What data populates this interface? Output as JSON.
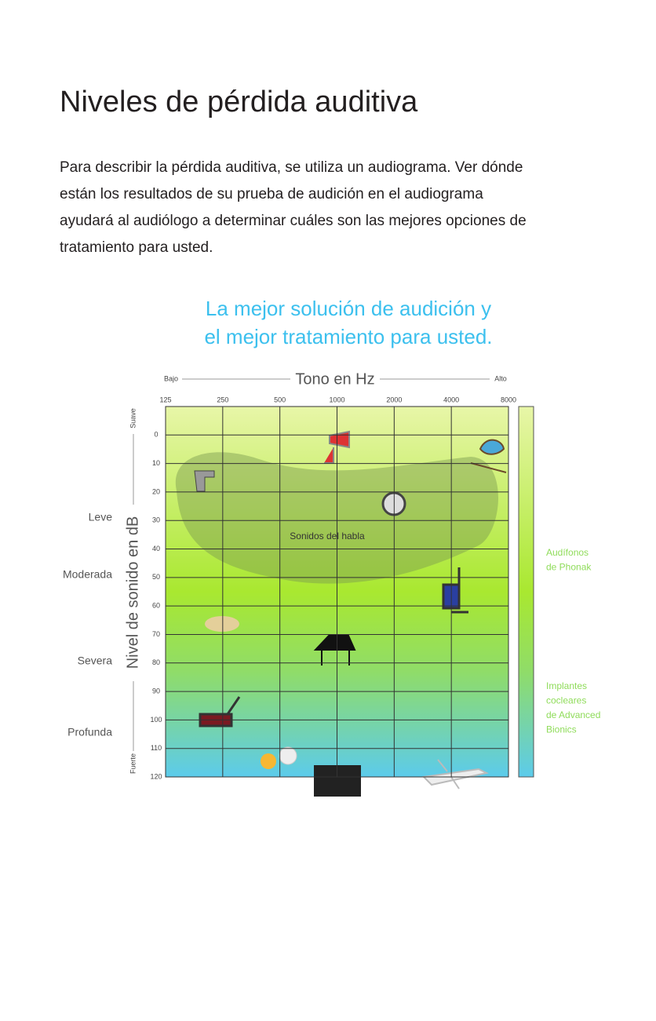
{
  "title": "Niveles de pérdida auditiva",
  "intro": [
    "Para describir la pérdida auditiva, se utiliza un audiograma. Ver dónde",
    "están los resultados de su prueba de audición en el audiograma",
    "ayudará al audiólogo a determinar cuáles son las mejores opciones de",
    "tratamiento para usted."
  ],
  "subtitle": [
    "La mejor solución de audición y",
    "el mejor tratamiento para usted."
  ],
  "chart_data": {
    "type": "audiogram",
    "x_label": "Tono en Hz",
    "x_low": "Bajo",
    "x_high": "Alto",
    "y_label": "Nivel de sonido en dB",
    "y_low": "Suave",
    "y_high": "Fuerte",
    "xscale": "log",
    "xlim": [
      125,
      8000
    ],
    "xticks": [
      125,
      250,
      500,
      1000,
      2000,
      4000,
      8000
    ],
    "ylim": [
      120,
      -10
    ],
    "yticks": [
      0,
      10,
      20,
      30,
      40,
      50,
      60,
      70,
      80,
      90,
      100,
      110,
      120
    ],
    "grid": true,
    "severity": [
      "Leve",
      "Moderada",
      "Severa",
      "Profunda"
    ],
    "speech_label": "Sonidos del habla",
    "solutions": [
      [
        "Audífonos",
        "de Phonak"
      ],
      [
        "Implantes",
        "cocleares",
        "de Advanced",
        "Bionics"
      ]
    ]
  }
}
